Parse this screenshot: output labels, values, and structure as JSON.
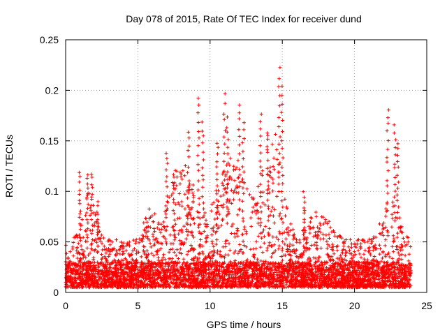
{
  "chart_data": {
    "type": "scatter",
    "title": "Day 078 of 2015, Rate Of TEC Index for receiver dund",
    "xlabel": "GPS time / hours",
    "ylabel": "ROTI / TECUs",
    "xlim": [
      0,
      25
    ],
    "ylim": [
      0,
      0.25
    ],
    "xticks": [
      0,
      5,
      10,
      15,
      20,
      25
    ],
    "yticks": [
      0,
      0.05,
      0.1,
      0.15,
      0.2,
      0.25
    ],
    "xtick_labels": [
      "0",
      "5",
      "10",
      "15",
      "20",
      "25"
    ],
    "ytick_labels": [
      "0",
      "0.05",
      "0.1",
      "0.15",
      "0.2",
      "0.25"
    ],
    "grid": true,
    "marker": "+",
    "color": "#ff0000",
    "x_extent": [
      0,
      23.9
    ],
    "baseline_band": [
      0.005,
      0.03
    ],
    "peaks": [
      {
        "x": 1.0,
        "y": 0.12
      },
      {
        "x": 1.5,
        "y": 0.12
      },
      {
        "x": 1.8,
        "y": 0.12
      },
      {
        "x": 2.2,
        "y": 0.09
      },
      {
        "x": 7.0,
        "y": 0.14
      },
      {
        "x": 7.5,
        "y": 0.12
      },
      {
        "x": 8.5,
        "y": 0.162
      },
      {
        "x": 9.2,
        "y": 0.195
      },
      {
        "x": 9.5,
        "y": 0.17
      },
      {
        "x": 10.5,
        "y": 0.15
      },
      {
        "x": 11.0,
        "y": 0.197
      },
      {
        "x": 11.2,
        "y": 0.174
      },
      {
        "x": 12.0,
        "y": 0.188
      },
      {
        "x": 12.3,
        "y": 0.17
      },
      {
        "x": 13.5,
        "y": 0.178
      },
      {
        "x": 14.0,
        "y": 0.16
      },
      {
        "x": 14.8,
        "y": 0.224
      },
      {
        "x": 15.0,
        "y": 0.205
      },
      {
        "x": 16.5,
        "y": 0.1
      },
      {
        "x": 22.3,
        "y": 0.184
      },
      {
        "x": 22.8,
        "y": 0.166
      },
      {
        "x": 23.0,
        "y": 0.15
      }
    ]
  }
}
